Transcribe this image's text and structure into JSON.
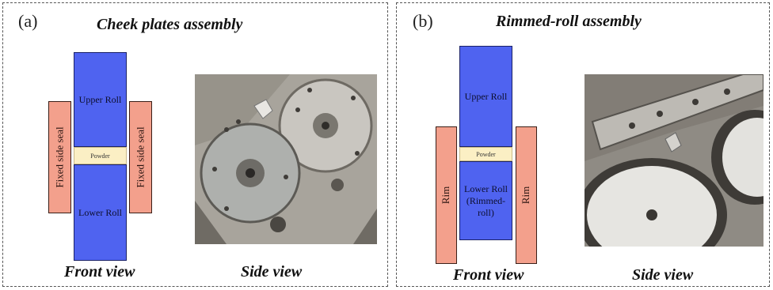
{
  "panel_a": {
    "letter": "(a)",
    "title": "Cheek plates assembly",
    "upper_roll": "Upper Roll",
    "lower_roll": "Lower Roll",
    "powder": "Powder",
    "left_seal": "Fixed side seal",
    "right_seal": "Fixed side seal",
    "front_view": "Front view",
    "side_view": "Side view"
  },
  "panel_b": {
    "letter": "(b)",
    "title": "Rimmed-roll assembly",
    "upper_roll": "Upper Roll",
    "lower_roll_line1": "Lower Roll",
    "lower_roll_line2": "(Rimmed-roll)",
    "powder": "Powder",
    "left_rim": "Rim",
    "right_rim": "Rim",
    "front_view": "Front view",
    "side_view": "Side view"
  },
  "colors": {
    "roll": "#4f63f0",
    "seal": "#f3a08c",
    "powder": "#fbefc4"
  }
}
